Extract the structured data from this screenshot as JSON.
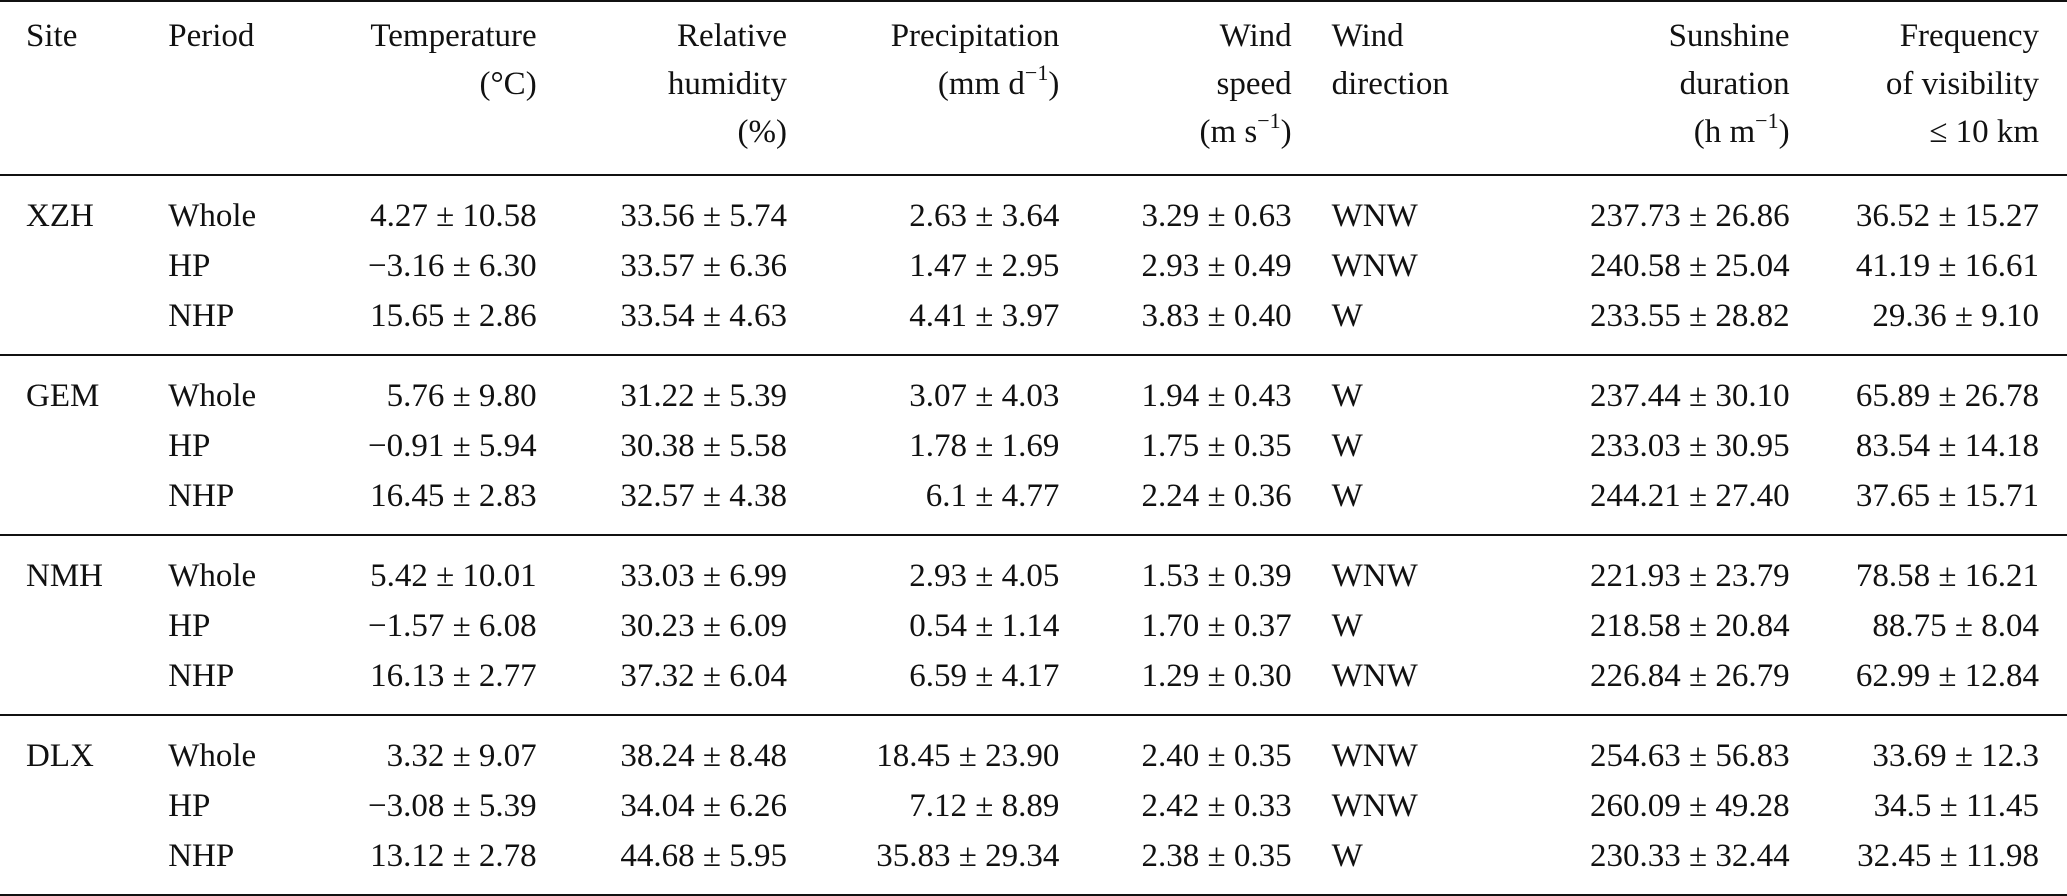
{
  "table": {
    "headers": {
      "site": [
        "Site"
      ],
      "period": [
        "Period"
      ],
      "temperature": [
        "Temperature",
        "(°C)"
      ],
      "relative_humidity": [
        "Relative",
        "humidity",
        "(%)"
      ],
      "precipitation": [
        "Precipitation",
        "(mm d",
        "−1",
        ")"
      ],
      "wind_speed": [
        "Wind",
        "speed",
        "(m s",
        "−1",
        ")"
      ],
      "wind_direction": [
        "Wind",
        "direction"
      ],
      "sunshine_duration": [
        "Sunshine",
        "duration",
        "(h m",
        "−1",
        ")"
      ],
      "visibility": [
        "Frequency",
        "of visibility",
        "≤ 10 km"
      ]
    },
    "groups": [
      {
        "site": "XZH",
        "rows": [
          {
            "period": "Whole",
            "temperature": "4.27 ± 10.58",
            "rh": "33.56 ± 5.74",
            "precip": "2.63 ± 3.64",
            "wind_speed": "3.29 ± 0.63",
            "wind_dir": "WNW",
            "sunshine": "237.73 ± 26.86",
            "visibility": "36.52 ± 15.27"
          },
          {
            "period": "HP",
            "temperature": "−3.16 ± 6.30",
            "rh": "33.57 ± 6.36",
            "precip": "1.47 ± 2.95",
            "wind_speed": "2.93 ± 0.49",
            "wind_dir": "WNW",
            "sunshine": "240.58 ± 25.04",
            "visibility": "41.19 ± 16.61"
          },
          {
            "period": "NHP",
            "temperature": "15.65 ± 2.86",
            "rh": "33.54 ± 4.63",
            "precip": "4.41 ± 3.97",
            "wind_speed": "3.83 ± 0.40",
            "wind_dir": "W",
            "sunshine": "233.55 ± 28.82",
            "visibility": "29.36 ± 9.10"
          }
        ]
      },
      {
        "site": "GEM",
        "rows": [
          {
            "period": "Whole",
            "temperature": "5.76 ± 9.80",
            "rh": "31.22 ± 5.39",
            "precip": "3.07 ± 4.03",
            "wind_speed": "1.94 ± 0.43",
            "wind_dir": "W",
            "sunshine": "237.44 ± 30.10",
            "visibility": "65.89 ± 26.78"
          },
          {
            "period": "HP",
            "temperature": "−0.91 ± 5.94",
            "rh": "30.38 ± 5.58",
            "precip": "1.78 ± 1.69",
            "wind_speed": "1.75 ± 0.35",
            "wind_dir": "W",
            "sunshine": "233.03 ± 30.95",
            "visibility": "83.54 ± 14.18"
          },
          {
            "period": "NHP",
            "temperature": "16.45 ± 2.83",
            "rh": "32.57 ± 4.38",
            "precip": "6.1 ± 4.77",
            "wind_speed": "2.24 ± 0.36",
            "wind_dir": "W",
            "sunshine": "244.21 ± 27.40",
            "visibility": "37.65 ± 15.71"
          }
        ]
      },
      {
        "site": "NMH",
        "rows": [
          {
            "period": "Whole",
            "temperature": "5.42 ± 10.01",
            "rh": "33.03 ± 6.99",
            "precip": "2.93 ± 4.05",
            "wind_speed": "1.53 ± 0.39",
            "wind_dir": "WNW",
            "sunshine": "221.93 ± 23.79",
            "visibility": "78.58 ± 16.21"
          },
          {
            "period": "HP",
            "temperature": "−1.57 ± 6.08",
            "rh": "30.23 ± 6.09",
            "precip": "0.54 ± 1.14",
            "wind_speed": "1.70 ± 0.37",
            "wind_dir": "W",
            "sunshine": "218.58 ± 20.84",
            "visibility": "88.75 ± 8.04"
          },
          {
            "period": "NHP",
            "temperature": "16.13 ± 2.77",
            "rh": "37.32 ± 6.04",
            "precip": "6.59 ± 4.17",
            "wind_speed": "1.29 ± 0.30",
            "wind_dir": "WNW",
            "sunshine": "226.84 ± 26.79",
            "visibility": "62.99 ± 12.84"
          }
        ]
      },
      {
        "site": "DLX",
        "rows": [
          {
            "period": "Whole",
            "temperature": "3.32 ± 9.07",
            "rh": "38.24 ± 8.48",
            "precip": "18.45 ± 23.90",
            "wind_speed": "2.40 ± 0.35",
            "wind_dir": "WNW",
            "sunshine": "254.63 ± 56.83",
            "visibility": "33.69 ± 12.3"
          },
          {
            "period": "HP",
            "temperature": "−3.08 ± 5.39",
            "rh": "34.04 ± 6.26",
            "precip": "7.12 ± 8.89",
            "wind_speed": "2.42 ± 0.33",
            "wind_dir": "WNW",
            "sunshine": "260.09 ± 49.28",
            "visibility": "34.5 ± 11.45"
          },
          {
            "period": "NHP",
            "temperature": "13.12 ± 2.78",
            "rh": "44.68 ± 5.95",
            "precip": "35.83 ± 29.34",
            "wind_speed": "2.38 ± 0.35",
            "wind_dir": "W",
            "sunshine": "230.33 ± 32.44",
            "visibility": "32.45 ± 11.98"
          }
        ]
      }
    ]
  }
}
